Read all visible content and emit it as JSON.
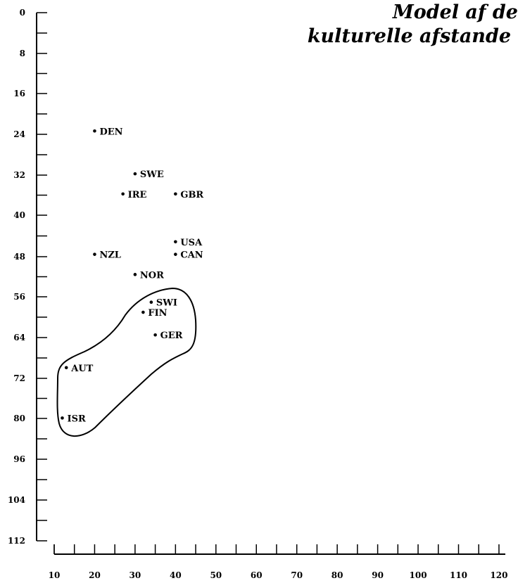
{
  "chart_data": {
    "type": "scatter",
    "title_lines": [
      "Model af de",
      "kulturelle afstande"
    ],
    "xlabel": "",
    "ylabel": "",
    "xlim": [
      10,
      120
    ],
    "ylim": [
      0,
      112
    ],
    "x_ticks": [
      "10",
      "20",
      "30",
      "40",
      "50",
      "60",
      "70",
      "80",
      "90",
      "100",
      "110",
      "120"
    ],
    "y_ticks": [
      "0",
      "8",
      "16",
      "24",
      "32",
      "40",
      "48",
      "56",
      "64",
      "72",
      "80",
      "96",
      "104",
      "112"
    ],
    "points": [
      {
        "label": "DEN",
        "x": 20,
        "y": 23.5
      },
      {
        "label": "SWE",
        "x": 30,
        "y": 32
      },
      {
        "label": "IRE",
        "x": 27,
        "y": 36
      },
      {
        "label": "GBR",
        "x": 40,
        "y": 36
      },
      {
        "label": "USA",
        "x": 40,
        "y": 45.5
      },
      {
        "label": "CAN",
        "x": 40,
        "y": 48
      },
      {
        "label": "NZL",
        "x": 20,
        "y": 48
      },
      {
        "label": "NOR",
        "x": 30,
        "y": 52
      },
      {
        "label": "SWI",
        "x": 34,
        "y": 57.5
      },
      {
        "label": "FIN",
        "x": 32,
        "y": 59.5
      },
      {
        "label": "GER",
        "x": 35,
        "y": 64
      },
      {
        "label": "AUT",
        "x": 13,
        "y": 70.5
      },
      {
        "label": "ISR",
        "x": 12,
        "y": 80.5
      }
    ],
    "cluster": [
      "SWI",
      "FIN",
      "GER",
      "AUT",
      "ISR"
    ],
    "grid": false
  }
}
